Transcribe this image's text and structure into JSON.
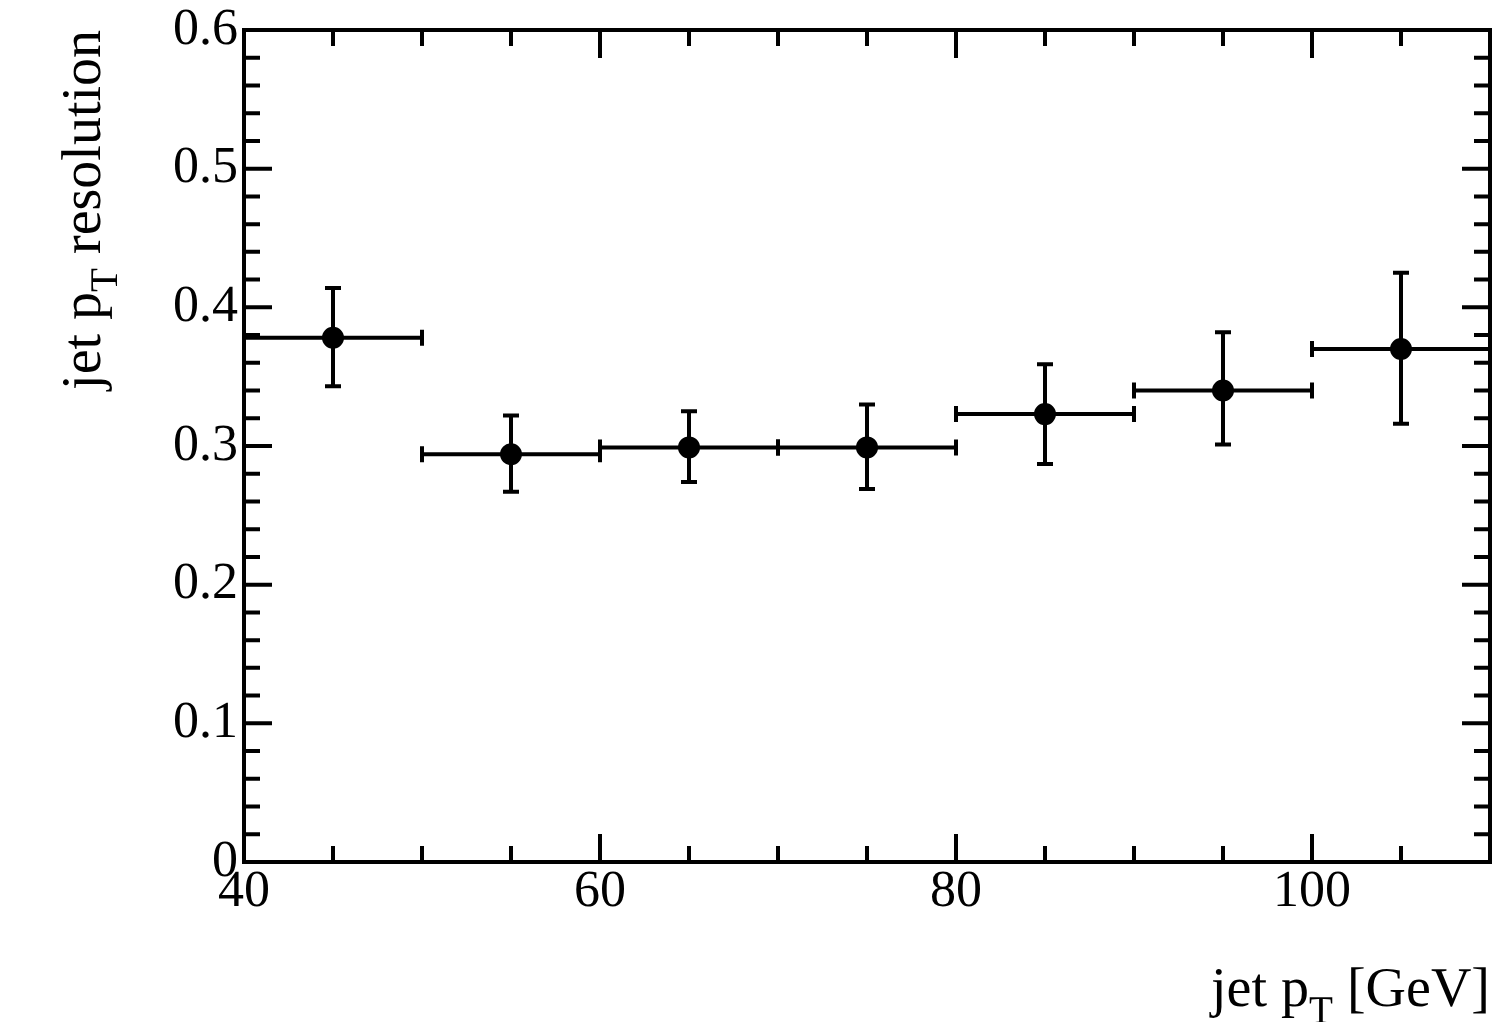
{
  "chart_data": {
    "type": "scatter",
    "xlabel": "jet p$_{T}$ [GeV]",
    "ylabel": "jet p$_{T}$ resolution",
    "x": [
      45,
      55,
      65,
      75,
      85,
      95,
      105
    ],
    "series": [
      {
        "color": "#000000",
        "values": [
          0.378,
          0.294,
          0.299,
          0.299,
          0.323,
          0.34,
          0.37
        ],
        "errors": [
          [
            0.343,
            0.414
          ],
          [
            0.267,
            0.322
          ],
          [
            0.274,
            0.325
          ],
          [
            0.269,
            0.33
          ],
          [
            0.287,
            0.359
          ],
          [
            0.301,
            0.382
          ],
          [
            0.316,
            0.425
          ]
        ],
        "xerrors": [
          5,
          5,
          5,
          5,
          5,
          5,
          5
        ]
      }
    ],
    "xlim": [
      40,
      110
    ],
    "xticks": [
      40,
      {
        "value": 45,
        "label": null
      },
      {
        "value": 50,
        "label": null
      },
      {
        "value": 55,
        "label": null
      },
      60,
      {
        "value": 65,
        "label": null
      },
      {
        "value": 70,
        "label": null
      },
      {
        "value": 75,
        "label": null
      },
      80,
      {
        "value": 85,
        "label": null
      },
      {
        "value": 90,
        "label": null
      },
      {
        "value": 95,
        "label": null
      },
      100,
      {
        "value": 105,
        "label": null
      },
      {
        "value": 110,
        "label": null
      }
    ],
    "ylim": [
      0,
      0.6
    ],
    "yticks": [
      0,
      {
        "value": 0.02,
        "label": null
      },
      {
        "value": 0.04,
        "label": null
      },
      {
        "value": 0.06,
        "label": null
      },
      {
        "value": 0.08,
        "label": null
      },
      0.1,
      {
        "value": 0.12,
        "label": null
      },
      {
        "value": 0.14,
        "label": null
      },
      {
        "value": 0.16,
        "label": null
      },
      {
        "value": 0.18,
        "label": null
      },
      0.2,
      {
        "value": 0.22,
        "label": null
      },
      {
        "value": 0.24,
        "label": null
      },
      {
        "value": 0.26,
        "label": null
      },
      {
        "value": 0.28,
        "label": null
      },
      0.3,
      {
        "value": 0.32,
        "label": null
      },
      {
        "value": 0.34,
        "label": null
      },
      {
        "value": 0.36,
        "label": null
      },
      {
        "value": 0.38,
        "label": null
      },
      0.4,
      {
        "value": 0.42,
        "label": null
      },
      {
        "value": 0.44,
        "label": null
      },
      {
        "value": 0.46,
        "label": null
      },
      {
        "value": 0.48,
        "label": null
      },
      0.5,
      {
        "value": 0.52,
        "label": null
      },
      {
        "value": 0.54,
        "label": null
      },
      {
        "value": 0.56,
        "label": null
      },
      {
        "value": 0.58,
        "label": null
      },
      0.6
    ],
    "grid": false,
    "legend": false,
    "marker": "circle"
  }
}
